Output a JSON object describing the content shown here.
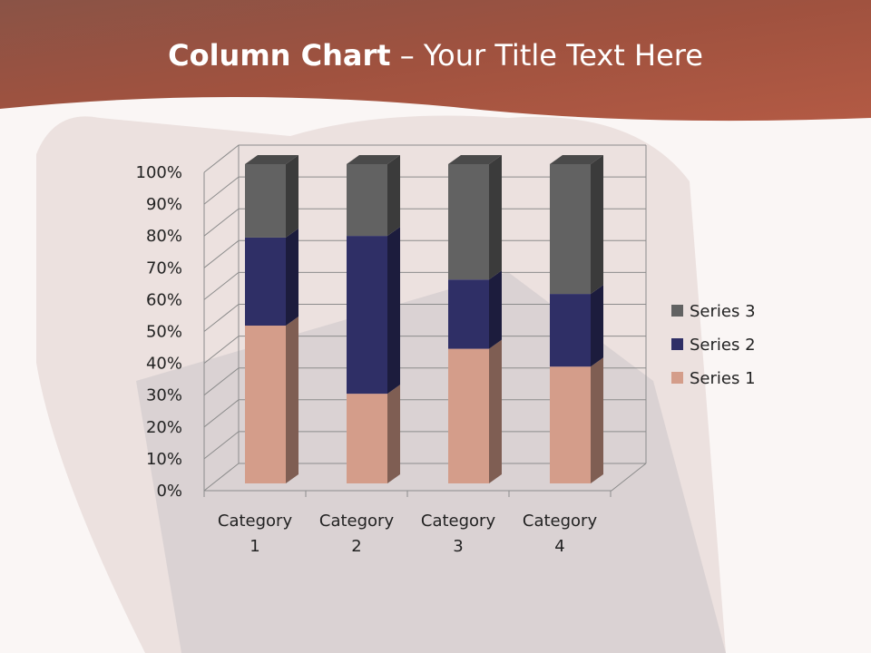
{
  "slide": {
    "title_bold": "Column Chart",
    "title_rest": " – Your Title Text Here"
  },
  "colors": {
    "header": "#a4533f",
    "series1": "#d49d8a",
    "series2": "#2f2f66",
    "series3": "#626262"
  },
  "chart_data": {
    "type": "bar",
    "subtype": "3d-100%-stacked-column",
    "categories": [
      "Category 1",
      "Category 2",
      "Category 3",
      "Category 4"
    ],
    "category_labels": [
      [
        "Category",
        "1"
      ],
      [
        "Category",
        "2"
      ],
      [
        "Category",
        "3"
      ],
      [
        "Category",
        "4"
      ]
    ],
    "series": [
      {
        "name": "Series 1",
        "values": [
          4.3,
          2.5,
          3.5,
          4.5
        ],
        "color": "#d49d8a"
      },
      {
        "name": "Series 2",
        "values": [
          2.4,
          4.4,
          1.8,
          2.8
        ],
        "color": "#2f2f66"
      },
      {
        "name": "Series 3",
        "values": [
          2,
          2,
          3,
          5
        ],
        "color": "#626262"
      }
    ],
    "yticks": [
      "0%",
      "10%",
      "20%",
      "30%",
      "40%",
      "50%",
      "60%",
      "70%",
      "80%",
      "90%",
      "100%"
    ],
    "ylim": [
      0,
      100
    ],
    "grid": true,
    "legend": "right"
  }
}
